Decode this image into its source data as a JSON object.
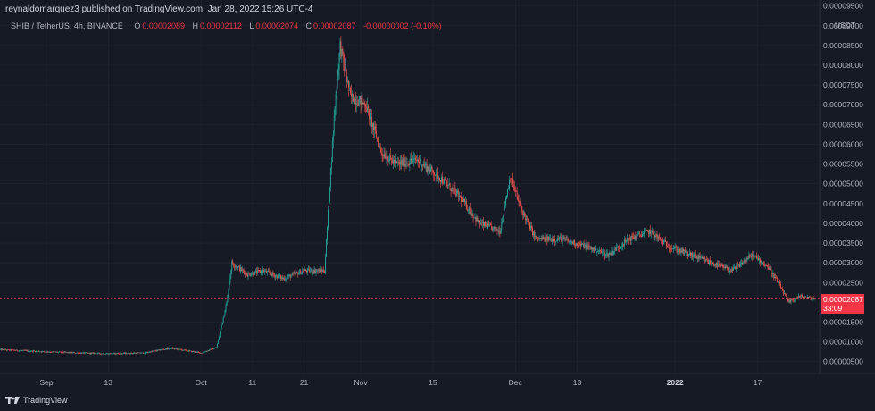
{
  "header": {
    "publisher_line": "reynaldomarquez3 published on TradingView.com, Jan 28, 2022 15:26 UTC-4",
    "symbol": "SHIB / TetherUS, 4h, BINANCE",
    "open_label": "O",
    "open_value": "0.00002089",
    "high_label": "H",
    "high_value": "0.00002112",
    "low_label": "L",
    "low_value": "0.00002074",
    "close_label": "C",
    "close_value": "0.00002087",
    "change_value": "-0.00000002 (-0.10%)"
  },
  "price_axis": {
    "unit": "USDT",
    "ticks": [
      "0.00009500",
      "0.00009000",
      "0.00008500",
      "0.00008000",
      "0.00007500",
      "0.00007000",
      "0.00006500",
      "0.00006000",
      "0.00005500",
      "0.00005000",
      "0.00004500",
      "0.00004000",
      "0.00003500",
      "0.00003000",
      "0.00002500",
      "0.00001500",
      "0.00001000",
      "0.00000500"
    ]
  },
  "price_tag": {
    "price": "0.00002087",
    "countdown": "33:09"
  },
  "footer": {
    "brand": "TradingView"
  },
  "colors": {
    "up": "#26a69a",
    "down": "#ef5350",
    "background": "#161a25",
    "grid": "#232633",
    "tag": "#f23645"
  },
  "chart_data": {
    "type": "candlestick",
    "symbol": "SHIB / TetherUS",
    "interval": "4h",
    "exchange": "BINANCE",
    "y_unit": "USDT",
    "ylim": [
      2e-06,
      9.65e-05
    ],
    "x_ticks": [
      "Sep",
      "13",
      "Oct",
      "11",
      "21",
      "Nov",
      "15",
      "Dec",
      "13",
      "2022",
      "17"
    ],
    "x_tick_dates": [
      "2021-09-01",
      "2021-09-13",
      "2021-10-01",
      "2021-10-11",
      "2021-10-21",
      "2021-11-01",
      "2021-11-15",
      "2021-12-01",
      "2021-12-13",
      "2022-01-01",
      "2022-01-17"
    ],
    "x_range": [
      "2021-08-23",
      "2022-01-28"
    ],
    "series": [
      {
        "values_approx": [
          [
            "2021-08-23",
            8e-06
          ],
          [
            "2021-09-01",
            7.5e-06
          ],
          [
            "2021-09-07",
            7.2e-06
          ],
          [
            "2021-09-13",
            7e-06
          ],
          [
            "2021-09-20",
            7.2e-06
          ],
          [
            "2021-09-25",
            8.4e-06
          ],
          [
            "2021-10-01",
            7.2e-06
          ],
          [
            "2021-10-04",
            8.5e-06
          ],
          [
            "2021-10-06",
            2e-05
          ],
          [
            "2021-10-07",
            3e-05
          ],
          [
            "2021-10-10",
            2.7e-05
          ],
          [
            "2021-10-13",
            2.8e-05
          ],
          [
            "2021-10-17",
            2.6e-05
          ],
          [
            "2021-10-21",
            2.8e-05
          ],
          [
            "2021-10-25",
            2.8e-05
          ],
          [
            "2021-10-26",
            5e-05
          ],
          [
            "2021-10-27",
            7e-05
          ],
          [
            "2021-10-28",
            8.5e-05
          ],
          [
            "2021-10-30",
            7.2e-05
          ],
          [
            "2021-11-02",
            7e-05
          ],
          [
            "2021-11-05",
            5.8e-05
          ],
          [
            "2021-11-08",
            5.5e-05
          ],
          [
            "2021-11-12",
            5.6e-05
          ],
          [
            "2021-11-16",
            5.2e-05
          ],
          [
            "2021-11-20",
            4.7e-05
          ],
          [
            "2021-11-24",
            4e-05
          ],
          [
            "2021-11-28",
            3.8e-05
          ],
          [
            "2021-11-30",
            5.2e-05
          ],
          [
            "2021-12-02",
            4.4e-05
          ],
          [
            "2021-12-05",
            3.6e-05
          ],
          [
            "2021-12-10",
            3.6e-05
          ],
          [
            "2021-12-15",
            3.4e-05
          ],
          [
            "2021-12-19",
            3.2e-05
          ],
          [
            "2021-12-23",
            3.6e-05
          ],
          [
            "2021-12-27",
            3.8e-05
          ],
          [
            "2021-12-31",
            3.4e-05
          ],
          [
            "2022-01-04",
            3.2e-05
          ],
          [
            "2022-01-08",
            3e-05
          ],
          [
            "2022-01-12",
            2.8e-05
          ],
          [
            "2022-01-16",
            3.2e-05
          ],
          [
            "2022-01-19",
            2.9e-05
          ],
          [
            "2022-01-21",
            2.5e-05
          ],
          [
            "2022-01-23",
            2e-05
          ],
          [
            "2022-01-25",
            2.15e-05
          ],
          [
            "2022-01-28",
            2.09e-05
          ]
        ]
      }
    ],
    "last_price": 2.087e-05
  }
}
